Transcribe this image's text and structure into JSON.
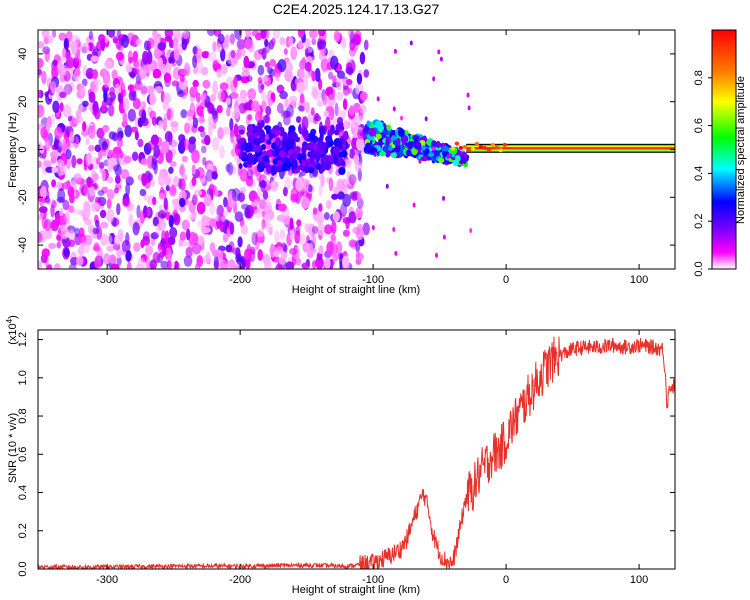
{
  "chart_data": [
    {
      "type": "heatmap",
      "title": "C2E4.2025.124.17.13.G27",
      "xlabel": "Height of straight line (km)",
      "ylabel": "Frequency (Hz)",
      "xlim": [
        -352,
        127
      ],
      "ylim": [
        -50,
        50
      ],
      "xticks": [
        "-300",
        "-200",
        "-100",
        "0",
        "100"
      ],
      "yticks": [
        "-40",
        "-20",
        "0",
        "20",
        "40"
      ],
      "colorbar": {
        "label": "Normalized spectral amplitude",
        "range": [
          0,
          1
        ],
        "ticks": [
          "0.0",
          "0.2",
          "0.4",
          "0.6",
          "0.8"
        ],
        "colors": [
          "#ffffff",
          "#ff00ff",
          "#7f00ff",
          "#0000ff",
          "#00ffff",
          "#00ff00",
          "#ffff00",
          "#ff8000",
          "#ff0000"
        ]
      },
      "regions": [
        {
          "name": "noise",
          "x_range": [
            -352,
            -105
          ],
          "freq_range": [
            -50,
            50
          ],
          "amplitude": 0.1
        },
        {
          "name": "transition",
          "x_range": [
            -105,
            -30
          ],
          "center_freq": 3,
          "amplitude": 0.45
        },
        {
          "name": "signal",
          "x_range": [
            -30,
            127
          ],
          "center_freq": 0.5,
          "amplitude": 0.95
        }
      ]
    },
    {
      "type": "line",
      "xlabel": "Height of straight line (km)",
      "ylabel": "SNR (10 * v/v)",
      "y_multiplier": "(x10^4)",
      "xlim": [
        -352,
        127
      ],
      "ylim": [
        0,
        1.25
      ],
      "xticks": [
        "-300",
        "-200",
        "-100",
        "0",
        "100"
      ],
      "yticks": [
        "0.0",
        "0.2",
        "0.4",
        "0.6",
        "0.8",
        "1.0",
        "1.2"
      ],
      "series": [
        {
          "color": "#e8302a",
          "x": [
            -352,
            -300,
            -250,
            -200,
            -150,
            -120,
            -100,
            -90,
            -80,
            -75,
            -70,
            -65,
            -62,
            -58,
            -55,
            -50,
            -45,
            -40,
            -35,
            -30,
            -25,
            -20,
            -15,
            -10,
            -5,
            0,
            5,
            10,
            15,
            20,
            25,
            30,
            35,
            40,
            45,
            50,
            60,
            70,
            80,
            90,
            100,
            110,
            118,
            120,
            121,
            123,
            125,
            127
          ],
          "y": [
            0.01,
            0.01,
            0.015,
            0.015,
            0.02,
            0.015,
            0.03,
            0.06,
            0.1,
            0.15,
            0.25,
            0.35,
            0.4,
            0.3,
            0.18,
            0.08,
            0.04,
            0.03,
            0.2,
            0.38,
            0.42,
            0.5,
            0.55,
            0.6,
            0.62,
            0.68,
            0.76,
            0.82,
            0.88,
            0.94,
            1.0,
            1.05,
            1.09,
            1.12,
            1.13,
            1.15,
            1.16,
            1.16,
            1.17,
            1.16,
            1.17,
            1.16,
            1.15,
            1.0,
            0.85,
            0.96,
            0.95,
            0.96
          ]
        }
      ]
    }
  ]
}
